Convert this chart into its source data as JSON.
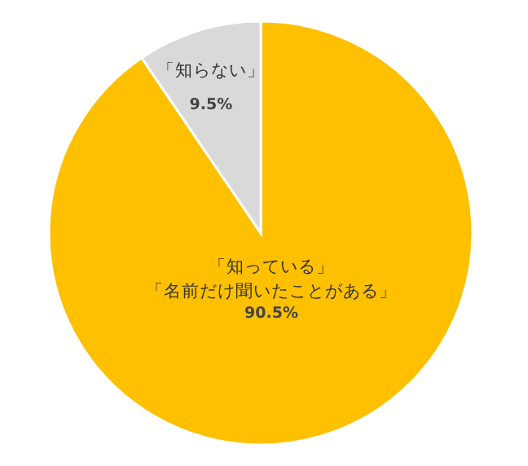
{
  "chart_data": {
    "type": "pie",
    "categories": [
      "「知っている」「名前だけ聞いたことがある」",
      "「知らない」"
    ],
    "values": [
      90.5,
      9.5
    ],
    "colors": [
      "#ffc000",
      "#d9d9d9"
    ],
    "value_labels": [
      "90.5%",
      "9.5%"
    ]
  }
}
